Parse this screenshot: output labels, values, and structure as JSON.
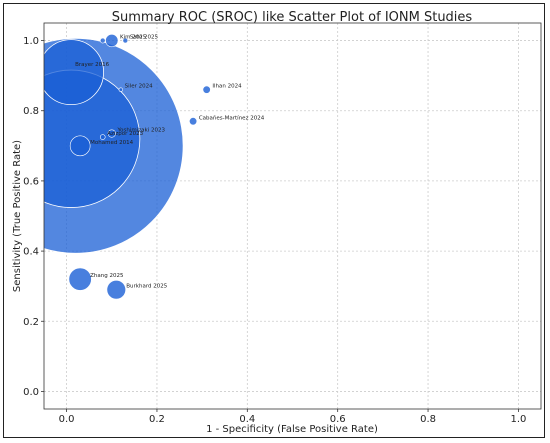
{
  "chart_data": {
    "type": "scatter",
    "title": "Summary ROC (SROC) like Scatter Plot of IONM Studies",
    "xlabel": "1 - Specificity (False Positive Rate)",
    "ylabel": "Sensitivity (True Positive Rate)",
    "xlim": [
      -0.05,
      1.05
    ],
    "ylim": [
      -0.05,
      1.05
    ],
    "xticks": [
      "0.0",
      "0.2",
      "0.4",
      "0.6",
      "0.8",
      "1.0"
    ],
    "yticks": [
      "0.0",
      "0.2",
      "0.4",
      "0.6",
      "0.8",
      "1.0"
    ],
    "grid": true,
    "point_color": "#1a5fd6",
    "points": [
      {
        "label": "Brayer 2016",
        "x": 0.01,
        "y": 0.91,
        "size": 26
      },
      {
        "label": "",
        "x": 0.02,
        "y": 0.7,
        "size": 86
      },
      {
        "label": "",
        "x": 0.01,
        "y": 0.72,
        "size": 55
      },
      {
        "label": "Mohamed 2014",
        "x": 0.03,
        "y": 0.7,
        "size": 8
      },
      {
        "label": "Yoshimizaki 2023",
        "x": 0.1,
        "y": 0.735,
        "size": 3
      },
      {
        "label": "Azizpor 2023",
        "x": 0.08,
        "y": 0.725,
        "size": 2
      },
      {
        "label": "",
        "x": 0.08,
        "y": 1.0,
        "size": 2
      },
      {
        "label": "Kim 2025",
        "x": 0.1,
        "y": 1.0,
        "size": 5
      },
      {
        "label": "Sato 2025",
        "x": 0.13,
        "y": 1.0,
        "size": 2
      },
      {
        "label": "Siler 2024",
        "x": 0.12,
        "y": 0.86,
        "size": 1.5
      },
      {
        "label": "Ilhan 2024",
        "x": 0.31,
        "y": 0.86,
        "size": 3
      },
      {
        "label": "Cabañes-Martínez 2024",
        "x": 0.28,
        "y": 0.77,
        "size": 3
      },
      {
        "label": "Zhang 2025",
        "x": 0.03,
        "y": 0.32,
        "size": 9
      },
      {
        "label": "Burkhard 2025",
        "x": 0.11,
        "y": 0.29,
        "size": 7.5
      }
    ]
  }
}
